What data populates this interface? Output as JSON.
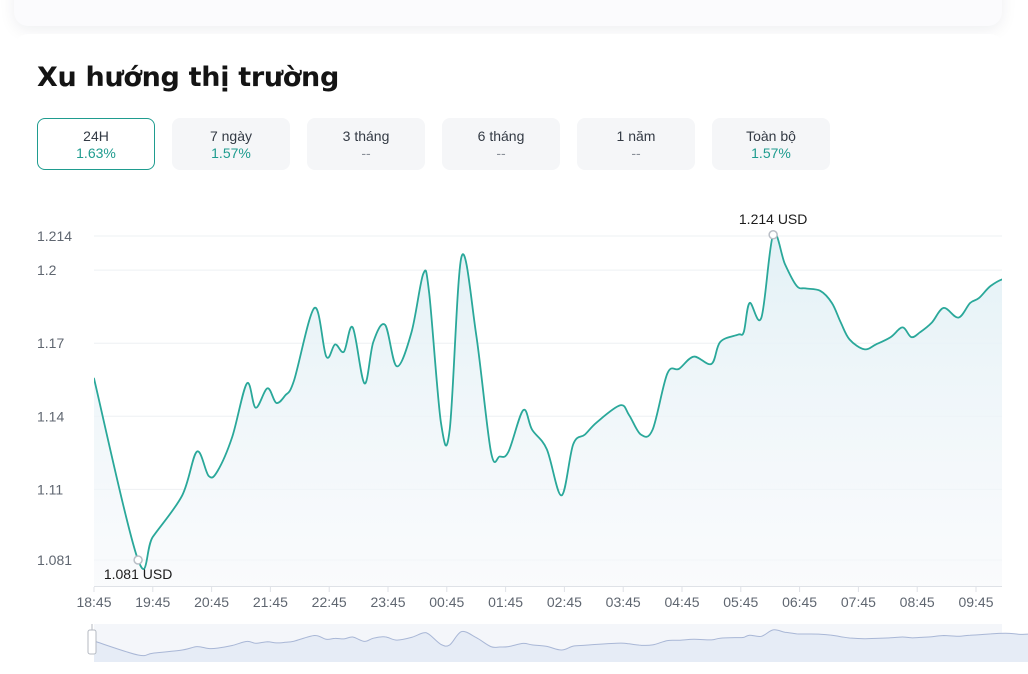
{
  "title": "Xu hướng thị trường",
  "tabs": [
    {
      "label": "24H",
      "value": "1.63%",
      "active": true
    },
    {
      "label": "7 ngày",
      "value": "1.57%",
      "active": false
    },
    {
      "label": "3 tháng",
      "value": "--",
      "active": false
    },
    {
      "label": "6 tháng",
      "value": "--",
      "active": false
    },
    {
      "label": "1 năm",
      "value": "--",
      "active": false
    },
    {
      "label": "Toàn bộ",
      "value": "1.57%",
      "active": false
    }
  ],
  "colors": {
    "line": "#2aa89a",
    "accent": "#1f9c8f",
    "area": "#e9f4f8",
    "grid": "#eef0f3"
  },
  "chart_data": {
    "type": "area",
    "x_tick_labels": [
      "18:45",
      "19:45",
      "20:45",
      "21:45",
      "22:45",
      "23:45",
      "00:45",
      "01:45",
      "02:45",
      "03:45",
      "04:45",
      "05:45",
      "06:45",
      "07:45",
      "08:45",
      "09:45"
    ],
    "y_tick_labels": [
      "1.081",
      "1.11",
      "1.14",
      "1.17",
      "1.2",
      "1.214"
    ],
    "y_ticks": [
      1.081,
      1.11,
      1.14,
      1.17,
      1.2,
      1.214
    ],
    "ylim": [
      1.081,
      1.214
    ],
    "grid": true,
    "min_label": "1.081 USD",
    "max_label": "1.214 USD",
    "series": [
      {
        "x": [
          0,
          0.75,
          1,
          1.5,
          1.75,
          1.95,
          2.1,
          2.35,
          2.6,
          2.75,
          2.95,
          3.1,
          3.25,
          3.4,
          3.75,
          3.95,
          4.1,
          4.25,
          4.4,
          4.6,
          4.75,
          4.95,
          5.15,
          5.4,
          5.6,
          5.7,
          5.9,
          6.05,
          6.25,
          6.5,
          6.75,
          6.9,
          7.05,
          7.3,
          7.45,
          7.7,
          7.95,
          8.15,
          8.35,
          8.55,
          8.95,
          9.1,
          9.3,
          9.5,
          9.75,
          9.95,
          10.2,
          10.5,
          10.65,
          10.95,
          11.05,
          11.15,
          11.35,
          11.55,
          11.75,
          11.95,
          12.1,
          12.35,
          12.55,
          12.7,
          12.85,
          13.1,
          13.3,
          13.55,
          13.75,
          13.9,
          14.05,
          14.25,
          14.45,
          14.7,
          14.9,
          15.05,
          15.25,
          15.5,
          15.65,
          15.75,
          15.95,
          16.05,
          16.3,
          16.55,
          16.75,
          16.95,
          17.1,
          17.3
        ],
        "y": [
          1.1555,
          1.081,
          1.0905,
          1.1075,
          1.1255,
          1.1155,
          1.1175,
          1.1315,
          1.1535,
          1.1435,
          1.1515,
          1.1455,
          1.1485,
          1.1545,
          1.1845,
          1.1645,
          1.1695,
          1.1665,
          1.1765,
          1.1535,
          1.1705,
          1.1775,
          1.1605,
          1.1745,
          1.1985,
          1.1905,
          1.1375,
          1.1345,
          1.2055,
          1.1735,
          1.1255,
          1.1235,
          1.1255,
          1.1425,
          1.1345,
          1.1265,
          1.1075,
          1.1285,
          1.1325,
          1.1375,
          1.1445,
          1.1405,
          1.1325,
          1.1345,
          1.1575,
          1.1595,
          1.1645,
          1.1615,
          1.1705,
          1.1735,
          1.1745,
          1.1865,
          1.1805,
          1.2145,
          1.2025,
          1.1935,
          1.1925,
          1.1915,
          1.1865,
          1.1785,
          1.1715,
          1.1675,
          1.1695,
          1.1725,
          1.1765,
          1.1725,
          1.1745,
          1.1785,
          1.1845,
          1.1805,
          1.1865,
          1.1885,
          1.1935,
          1.1965,
          1.1945,
          1.1905,
          1.1935,
          1.1945,
          1.1985,
          1.1925,
          1.1895,
          1.1895,
          1.1875,
          1.1905
        ]
      }
    ]
  }
}
